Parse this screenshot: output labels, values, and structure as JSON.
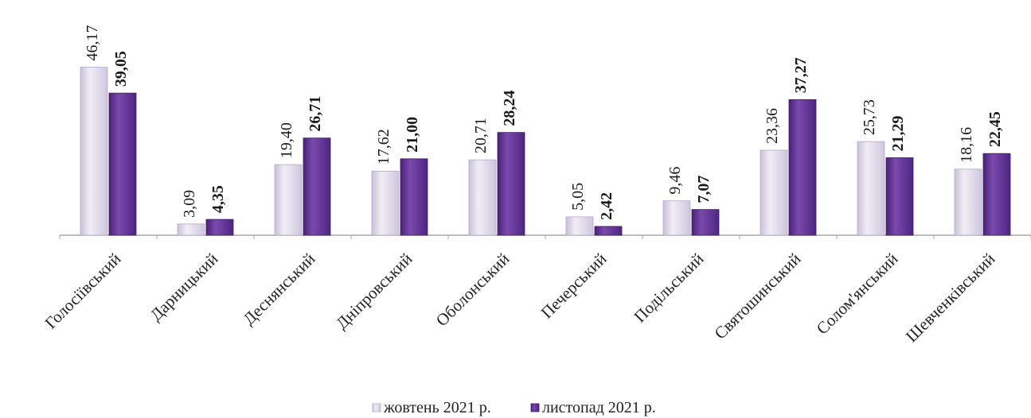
{
  "chart_data": {
    "type": "bar",
    "categories": [
      "Голосіївський",
      "Дарницький",
      "Деснянський",
      "Дніпровський",
      "Оболонський",
      "Печерський",
      "Подільський",
      "Святошинський",
      "Солом'янський",
      "Шевченківський"
    ],
    "series": [
      {
        "name": "жовтень 2021 р.",
        "values": [
          46.17,
          3.09,
          19.4,
          17.62,
          20.71,
          5.05,
          9.46,
          23.36,
          25.73,
          18.16
        ],
        "labels": [
          "46,17",
          "3,09",
          "19,40",
          "17,62",
          "20,71",
          "5,05",
          "9,46",
          "23,36",
          "25,73",
          "18,16"
        ],
        "color": "#D9D2E4"
      },
      {
        "name": "листопад 2021 р.",
        "values": [
          39.05,
          4.35,
          26.71,
          21.0,
          28.24,
          2.42,
          7.07,
          37.27,
          21.29,
          22.45
        ],
        "labels": [
          "39,05",
          "4,35",
          "26,71",
          "21,00",
          "28,24",
          "2,42",
          "7,07",
          "37,27",
          "21,29",
          "22,45"
        ],
        "color": "#5E2D91"
      }
    ],
    "ylim": [
      0,
      50
    ],
    "grid": false,
    "legend_position": "bottom"
  }
}
